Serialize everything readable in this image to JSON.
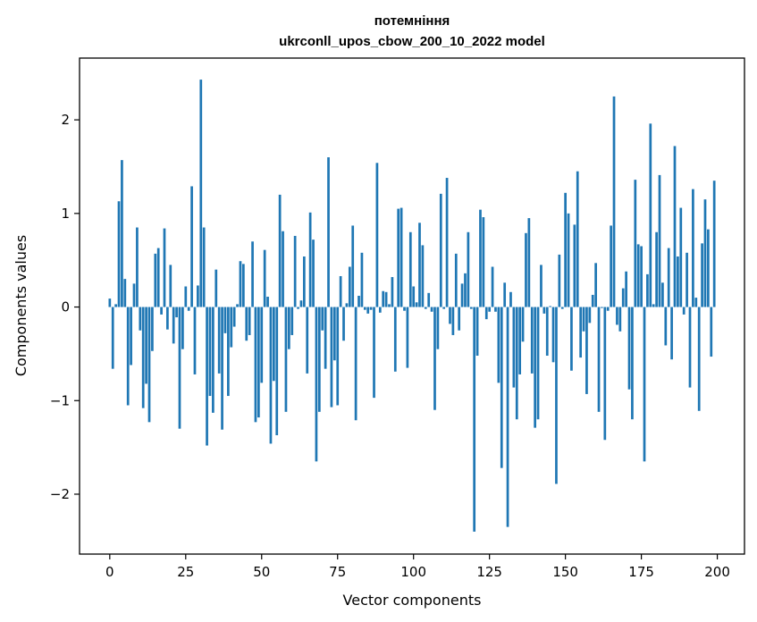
{
  "chart_data": {
    "type": "bar",
    "title_line1": "потемніння",
    "title_line2": "ukrconll_upos_cbow_200_10_2022 model",
    "xlabel": "Vector components",
    "ylabel": "Components values",
    "xlim": [
      -9.95,
      208.95
    ],
    "ylim": [
      -2.64,
      2.66
    ],
    "xticks": [
      0,
      25,
      50,
      75,
      100,
      125,
      150,
      175,
      200
    ],
    "xtick_labels": [
      "0",
      "25",
      "50",
      "75",
      "100",
      "125",
      "150",
      "175",
      "200"
    ],
    "yticks": [
      -2,
      -1,
      0,
      1,
      2
    ],
    "ytick_labels": [
      "−2",
      "−1",
      "0",
      "1",
      "2"
    ],
    "bar_color": "#1f77b4",
    "grid": false,
    "values": [
      0.09,
      -0.66,
      0.03,
      1.13,
      1.57,
      0.3,
      -1.05,
      -0.62,
      0.25,
      0.85,
      -0.25,
      -1.08,
      -0.82,
      -1.23,
      -0.47,
      0.57,
      0.63,
      -0.08,
      0.84,
      -0.24,
      0.45,
      -0.39,
      -0.11,
      -1.3,
      -0.45,
      0.22,
      -0.04,
      1.29,
      -0.72,
      0.23,
      2.43,
      0.85,
      -1.48,
      -0.95,
      -1.13,
      0.4,
      -0.71,
      -1.31,
      -0.28,
      -0.95,
      -0.43,
      -0.21,
      0.03,
      0.49,
      0.46,
      -0.36,
      -0.3,
      0.7,
      -1.23,
      -1.18,
      -0.81,
      0.61,
      0.11,
      -1.46,
      -0.79,
      -1.37,
      1.2,
      0.81,
      -1.12,
      -0.45,
      -0.3,
      0.76,
      -0.02,
      0.07,
      0.54,
      -0.71,
      1.01,
      0.72,
      -1.65,
      -1.12,
      -0.25,
      -0.66,
      1.6,
      -1.07,
      -0.57,
      -1.05,
      0.33,
      -0.36,
      0.04,
      0.43,
      0.87,
      -1.21,
      0.12,
      0.58,
      -0.03,
      -0.07,
      -0.03,
      -0.97,
      1.54,
      -0.06,
      0.17,
      0.16,
      0.03,
      0.32,
      -0.69,
      1.05,
      1.06,
      -0.04,
      -0.65,
      0.8,
      0.22,
      0.05,
      0.9,
      0.66,
      -0.02,
      0.15,
      -0.05,
      -1.1,
      -0.45,
      1.21,
      -0.02,
      1.38,
      -0.18,
      -0.3,
      0.57,
      -0.25,
      0.25,
      0.36,
      0.8,
      -0.02,
      -2.4,
      -0.52,
      1.04,
      0.96,
      -0.13,
      -0.05,
      0.43,
      -0.05,
      -0.81,
      -1.72,
      0.26,
      -2.35,
      0.16,
      -0.86,
      -1.2,
      -0.72,
      -0.37,
      0.79,
      0.95,
      -0.71,
      -1.29,
      -1.2,
      0.45,
      -0.07,
      -0.52,
      0.01,
      -0.59,
      -1.89,
      0.56,
      -0.02,
      1.22,
      1.0,
      -0.68,
      0.88,
      1.45,
      -0.54,
      -0.26,
      -0.93,
      -0.17,
      0.13,
      0.47,
      -1.12,
      -0.01,
      -1.42,
      -0.04,
      0.87,
      2.25,
      -0.19,
      -0.26,
      0.2,
      0.38,
      -0.88,
      -1.2,
      1.36,
      0.67,
      0.65,
      -1.65,
      0.35,
      1.96,
      0.03,
      0.8,
      1.41,
      0.26,
      -0.41,
      0.63,
      -0.56,
      1.72,
      0.54,
      1.06,
      -0.08,
      0.58,
      -0.86,
      1.26,
      0.1,
      -1.11,
      0.68,
      1.15,
      0.83,
      -0.53,
      1.35
    ]
  }
}
